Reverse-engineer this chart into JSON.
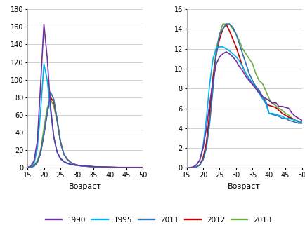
{
  "colors": {
    "1990": "#7030a0",
    "1995": "#00b0f0",
    "2011": "#2e75b6",
    "2012": "#c00000",
    "2013": "#70ad47"
  },
  "legend_labels": [
    "1990",
    "1995",
    "2011",
    "2012",
    "2013"
  ],
  "xlabel": "Возраст",
  "left": {
    "ages": [
      15,
      16,
      17,
      18,
      19,
      20,
      21,
      22,
      23,
      24,
      25,
      26,
      27,
      28,
      29,
      30,
      31,
      32,
      33,
      34,
      35,
      36,
      37,
      38,
      39,
      40,
      41,
      42,
      43,
      44,
      45,
      46,
      47,
      48,
      49,
      50
    ],
    "1990": [
      0.5,
      2,
      8,
      30,
      95,
      163,
      125,
      70,
      35,
      18,
      11,
      7.5,
      5.5,
      4.2,
      3.5,
      3.0,
      2.5,
      2.2,
      2.0,
      1.8,
      1.5,
      1.3,
      1.2,
      1.0,
      0.9,
      0.8,
      0.7,
      0.6,
      0.5,
      0.5,
      0.5,
      0.5,
      0.5,
      0.5,
      0.5,
      0.5
    ],
    "1995": [
      0.5,
      1.5,
      5,
      22,
      65,
      118,
      100,
      65,
      35,
      18,
      10,
      7.0,
      5.0,
      4.0,
      3.2,
      2.7,
      2.3,
      2.0,
      1.7,
      1.5,
      1.3,
      1.1,
      1.0,
      0.9,
      0.8,
      0.7,
      0.6,
      0.6,
      0.5,
      0.5,
      0.5,
      0.5,
      0.5,
      0.5,
      0.5,
      0.5
    ],
    "2011": [
      0.3,
      0.7,
      2,
      6,
      17,
      38,
      62,
      86,
      78,
      55,
      30,
      16,
      10,
      6.5,
      4.5,
      3.2,
      2.5,
      2.0,
      1.8,
      1.5,
      1.3,
      1.1,
      1.0,
      0.9,
      0.8,
      0.7,
      0.6,
      0.5,
      0.5,
      0.5,
      0.5,
      0.5,
      0.5,
      0.5,
      0.5,
      0.5
    ],
    "2012": [
      0.3,
      0.7,
      2,
      6,
      17,
      38,
      62,
      80,
      75,
      55,
      30,
      16,
      10,
      6.5,
      4.5,
      3.2,
      2.5,
      2.0,
      1.8,
      1.5,
      1.3,
      1.1,
      1.0,
      0.9,
      0.8,
      0.7,
      0.6,
      0.5,
      0.5,
      0.5,
      0.5,
      0.5,
      0.5,
      0.5,
      0.5,
      0.5
    ],
    "2013": [
      0.5,
      1,
      3,
      8,
      20,
      45,
      68,
      78,
      70,
      53,
      30,
      16,
      10,
      6.5,
      4.5,
      3.2,
      2.5,
      2.0,
      1.8,
      1.5,
      1.3,
      1.1,
      1.0,
      0.9,
      0.8,
      0.7,
      0.6,
      0.5,
      0.5,
      0.5,
      0.5,
      0.5,
      0.5,
      0.5,
      0.5,
      0.5
    ],
    "ylim": [
      0,
      180
    ],
    "yticks": [
      0,
      20,
      40,
      60,
      80,
      100,
      120,
      140,
      160,
      180
    ]
  },
  "right": {
    "ages": [
      15,
      16,
      17,
      18,
      19,
      20,
      21,
      22,
      23,
      24,
      25,
      26,
      27,
      28,
      29,
      30,
      31,
      32,
      33,
      34,
      35,
      36,
      37,
      38,
      39,
      40,
      41,
      42,
      43,
      44,
      45,
      46,
      47,
      48,
      49,
      50
    ],
    "1990": [
      0.0,
      0.0,
      0.1,
      0.3,
      0.8,
      2.0,
      4.0,
      6.5,
      8.8,
      10.5,
      11.2,
      11.5,
      11.7,
      11.5,
      11.2,
      10.8,
      10.2,
      9.8,
      9.2,
      8.8,
      8.4,
      8.0,
      7.6,
      7.2,
      7.0,
      6.8,
      6.5,
      6.6,
      6.2,
      6.2,
      6.1,
      6.0,
      5.5,
      5.2,
      5.0,
      4.8
    ],
    "1995": [
      0.0,
      0.0,
      0.1,
      0.3,
      0.8,
      2.2,
      5.0,
      8.5,
      11.0,
      12.1,
      12.2,
      12.2,
      12.0,
      11.8,
      11.5,
      11.2,
      10.8,
      10.2,
      9.5,
      9.0,
      8.5,
      8.0,
      7.5,
      7.0,
      6.5,
      5.5,
      5.5,
      5.4,
      5.3,
      5.2,
      5.0,
      5.0,
      4.9,
      4.8,
      4.7,
      4.6
    ],
    "2011": [
      0.0,
      0.0,
      0.0,
      0.1,
      0.3,
      0.8,
      2.0,
      4.5,
      8.0,
      11.5,
      13.5,
      14.0,
      14.5,
      14.5,
      14.2,
      13.5,
      12.5,
      11.5,
      10.5,
      9.5,
      8.8,
      8.2,
      7.8,
      7.2,
      6.8,
      5.5,
      5.4,
      5.3,
      5.2,
      5.0,
      5.0,
      4.8,
      4.7,
      4.6,
      4.5,
      4.5
    ],
    "2012": [
      0.0,
      0.0,
      0.0,
      0.1,
      0.3,
      1.0,
      2.5,
      5.5,
      9.0,
      11.5,
      13.0,
      14.0,
      14.5,
      13.8,
      13.0,
      12.2,
      11.2,
      10.2,
      9.5,
      9.0,
      8.5,
      8.2,
      7.8,
      7.2,
      6.5,
      6.3,
      6.2,
      6.1,
      5.8,
      5.5,
      5.3,
      5.1,
      5.0,
      4.8,
      4.7,
      4.6
    ],
    "2013": [
      0.0,
      0.0,
      0.0,
      0.1,
      0.3,
      1.0,
      2.5,
      5.5,
      9.2,
      12.0,
      13.5,
      14.5,
      14.5,
      14.5,
      14.0,
      13.5,
      12.8,
      12.0,
      11.5,
      11.0,
      10.5,
      9.5,
      8.8,
      8.5,
      7.8,
      7.0,
      6.5,
      6.3,
      6.0,
      5.8,
      5.5,
      5.3,
      5.0,
      4.8,
      4.6,
      4.5
    ],
    "ylim": [
      0,
      16
    ],
    "yticks": [
      0,
      2,
      4,
      6,
      8,
      10,
      12,
      14,
      16
    ]
  },
  "xticks": [
    15,
    20,
    25,
    30,
    35,
    40,
    45,
    50
  ],
  "bg_color": "#ffffff",
  "grid_color": "#d0d0d0",
  "line_width": 1.2
}
